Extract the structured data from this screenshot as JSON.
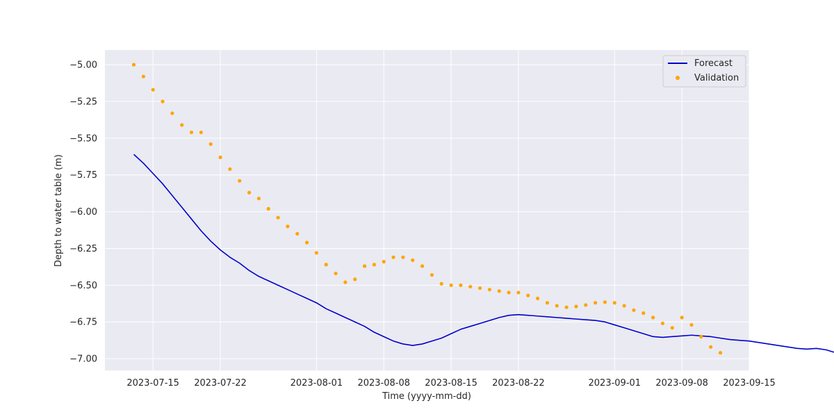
{
  "chart_data": {
    "type": "line",
    "title": "",
    "xlabel": "Time (yyyy-mm-dd)",
    "ylabel": "Depth to water table (m)",
    "x_start": "2023-07-13",
    "xlim": [
      "2023-07-10",
      "2023-09-15"
    ],
    "ylim": [
      -7.08,
      -4.9
    ],
    "grid": true,
    "legend_position": "top-right",
    "x_ticks": [
      "2023-07-15",
      "2023-07-22",
      "2023-08-01",
      "2023-08-08",
      "2023-08-15",
      "2023-08-22",
      "2023-09-01",
      "2023-09-08",
      "2023-09-15"
    ],
    "y_ticks": [
      -5.0,
      -5.25,
      -5.5,
      -5.75,
      -6.0,
      -6.25,
      -6.5,
      -6.75,
      -7.0
    ],
    "y_tick_labels": [
      "−5.00",
      "−5.25",
      "−5.50",
      "−5.75",
      "−6.00",
      "−6.25",
      "−6.50",
      "−6.75",
      "−7.00"
    ],
    "series": [
      {
        "name": "Forecast",
        "style": "line",
        "color": "#0000cd",
        "values": [
          -5.61,
          -5.67,
          -5.74,
          -5.81,
          -5.89,
          -5.97,
          -6.05,
          -6.13,
          -6.2,
          -6.26,
          -6.31,
          -6.35,
          -6.4,
          -6.44,
          -6.47,
          -6.5,
          -6.53,
          -6.56,
          -6.59,
          -6.62,
          -6.66,
          -6.69,
          -6.72,
          -6.75,
          -6.78,
          -6.82,
          -6.85,
          -6.88,
          -6.9,
          -6.91,
          -6.9,
          -6.88,
          -6.86,
          -6.83,
          -6.8,
          -6.78,
          -6.76,
          -6.74,
          -6.72,
          -6.705,
          -6.7,
          -6.705,
          -6.71,
          -6.715,
          -6.72,
          -6.725,
          -6.73,
          -6.735,
          -6.74,
          -6.75,
          -6.77,
          -6.79,
          -6.81,
          -6.83,
          -6.85,
          -6.855,
          -6.85,
          -6.845,
          -6.84,
          -6.845,
          -6.85,
          -6.86,
          -6.87,
          -6.875,
          -6.88,
          -6.89,
          -6.9,
          -6.91,
          -6.92,
          -6.93,
          -6.935,
          -6.93,
          -6.94,
          -6.96,
          -6.97,
          -6.98
        ]
      },
      {
        "name": "Validation",
        "style": "points",
        "color": "#ffa500",
        "values": [
          -5.0,
          -5.08,
          -5.17,
          -5.25,
          -5.33,
          -5.41,
          -5.46,
          -5.46,
          -5.54,
          -5.63,
          -5.71,
          -5.79,
          -5.87,
          -5.91,
          -5.98,
          -6.04,
          -6.1,
          -6.15,
          -6.21,
          -6.28,
          -6.36,
          -6.42,
          -6.48,
          -6.46,
          -6.37,
          -6.36,
          -6.34,
          -6.31,
          -6.31,
          -6.33,
          -6.37,
          -6.43,
          -6.49,
          -6.5,
          -6.5,
          -6.51,
          -6.52,
          -6.53,
          -6.54,
          -6.55,
          -6.55,
          -6.57,
          -6.59,
          -6.62,
          -6.64,
          -6.65,
          -6.645,
          -6.635,
          -6.62,
          -6.615,
          -6.62,
          -6.64,
          -6.67,
          -6.69,
          -6.72,
          -6.76,
          -6.79,
          -6.72,
          -6.77,
          -6.85,
          -6.92,
          -6.96
        ]
      }
    ]
  }
}
